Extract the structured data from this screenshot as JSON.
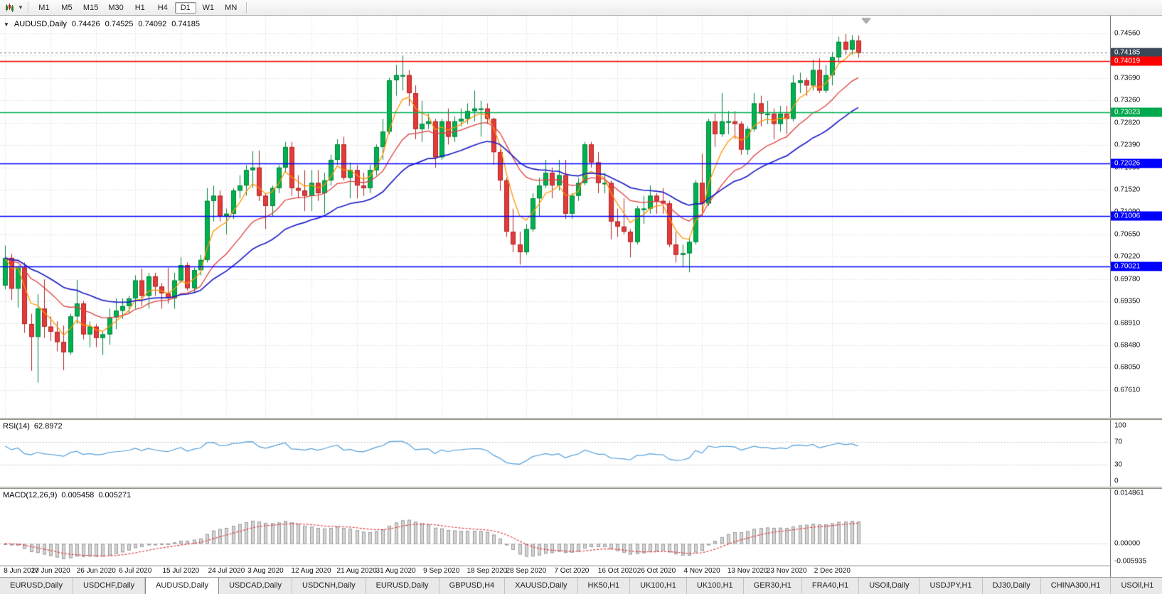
{
  "toolbar": {
    "timeframes": [
      "M1",
      "M5",
      "M15",
      "M30",
      "H1",
      "H4",
      "D1",
      "W1",
      "MN"
    ],
    "active_timeframe": "D1"
  },
  "symbol": {
    "name": "AUDUSD,Daily",
    "open": "0.74426",
    "high": "0.74525",
    "low": "0.74092",
    "close": "0.74185"
  },
  "rsi": {
    "label": "RSI(14)",
    "value": "62.8972",
    "axis_labels": [
      "100",
      "70",
      "30",
      "0"
    ],
    "axis_values": [
      100,
      70,
      30,
      0
    ],
    "level_lines": [
      70,
      30
    ]
  },
  "macd": {
    "label": "MACD(12,26,9)",
    "value_main": "0.005458",
    "value_signal": "0.005271",
    "axis_labels": [
      {
        "text": "0.014861",
        "value": 0.014861
      },
      {
        "text": "0.00000",
        "value": 0
      },
      {
        "text": "-0.005935",
        "value": -0.005935
      }
    ],
    "range": [
      -0.006,
      0.0149
    ]
  },
  "price_scale": {
    "grid_labels": [
      "0.74560",
      "0.74130",
      "0.73690",
      "0.73260",
      "0.72820",
      "0.72390",
      "0.71950",
      "0.71520",
      "0.71090",
      "0.70650",
      "0.70220",
      "0.69780",
      "0.69350",
      "0.68910",
      "0.68480",
      "0.68050",
      "0.67610"
    ],
    "badges": [
      {
        "label": "0.74185",
        "price": 0.74185,
        "color": "#3a4757",
        "name": "current-price-badge"
      },
      {
        "label": "0.74019",
        "price": 0.74019,
        "color": "#ff0000",
        "name": "price-level-badge-red"
      },
      {
        "label": "0.73023",
        "price": 0.73023,
        "color": "#00a84e",
        "name": "price-level-badge-green"
      },
      {
        "label": "0.72026",
        "price": 0.72026,
        "color": "#0000ff",
        "name": "price-level-badge-blue-1"
      },
      {
        "label": "0.71006",
        "price": 0.71006,
        "color": "#0000ff",
        "name": "price-level-badge-blue-2"
      },
      {
        "label": "0.70021",
        "price": 0.70021,
        "color": "#0000ff",
        "name": "price-level-badge-blue-3"
      }
    ]
  },
  "levels": [
    {
      "price": 0.74019,
      "color": "#ff0000"
    },
    {
      "price": 0.73023,
      "color": "#00b050"
    },
    {
      "price": 0.72026,
      "color": "#0000ff"
    },
    {
      "price": 0.71006,
      "color": "#0000ff"
    },
    {
      "price": 0.70021,
      "color": "#0000ff"
    }
  ],
  "current_price": {
    "price": 0.74185,
    "line_color": "#6b7684"
  },
  "colors": {
    "bull": "#00b14f",
    "bull_border": "#00843b",
    "bear": "#e23b3b",
    "bear_border": "#b02525",
    "ma_fast": "#ff9500",
    "ma_mid": "#e03e3e",
    "ma_slow": "#2020c8",
    "rsi_line": "#55a0dc",
    "macd_hist_fill": "#d6d6d6",
    "macd_hist_border": "#9a9a9a",
    "macd_signal": "#e03030",
    "grid": "#d8d8d8",
    "subgrid": "#c8c8c8"
  },
  "chart_data": {
    "type": "candlestick",
    "symbol": "AUDUSD",
    "timeframe": "Daily",
    "y_range_hint": [
      0.6761,
      0.7456
    ],
    "ma_periods": {
      "fast": 5,
      "mid": 15,
      "slow": 30
    },
    "x_ticks": [
      {
        "label": "8 Jun 2020",
        "index": 0
      },
      {
        "label": "17 Jun 2020",
        "index": 7
      },
      {
        "label": "26 Jun 2020",
        "index": 14
      },
      {
        "label": "6 Jul 2020",
        "index": 20
      },
      {
        "label": "15 Jul 2020",
        "index": 27
      },
      {
        "label": "24 Jul 2020",
        "index": 34
      },
      {
        "label": "3 Aug 2020",
        "index": 40
      },
      {
        "label": "12 Aug 2020",
        "index": 47
      },
      {
        "label": "21 Aug 2020",
        "index": 54
      },
      {
        "label": "31 Aug 2020",
        "index": 60
      },
      {
        "label": "9 Sep 2020",
        "index": 67
      },
      {
        "label": "18 Sep 2020",
        "index": 74
      },
      {
        "label": "28 Sep 2020",
        "index": 80
      },
      {
        "label": "7 Oct 2020",
        "index": 87
      },
      {
        "label": "16 Oct 2020",
        "index": 94
      },
      {
        "label": "26 Oct 2020",
        "index": 100
      },
      {
        "label": "4 Nov 2020",
        "index": 107
      },
      {
        "label": "13 Nov 2020",
        "index": 114
      },
      {
        "label": "23 Nov 2020",
        "index": 120
      },
      {
        "label": "2 Dec 2020",
        "index": 127
      }
    ],
    "candles": [
      [
        0.6965,
        0.7043,
        0.6958,
        0.7019
      ],
      [
        0.7019,
        0.7027,
        0.6937,
        0.6959
      ],
      [
        0.6959,
        0.7004,
        0.6922,
        0.7
      ],
      [
        0.7,
        0.701,
        0.6873,
        0.689
      ],
      [
        0.689,
        0.691,
        0.6799,
        0.6865
      ],
      [
        0.6865,
        0.6948,
        0.6776,
        0.692
      ],
      [
        0.692,
        0.6977,
        0.6863,
        0.6885
      ],
      [
        0.6885,
        0.6905,
        0.6857,
        0.6875
      ],
      [
        0.6875,
        0.6895,
        0.6837,
        0.6855
      ],
      [
        0.6855,
        0.6887,
        0.68,
        0.6835
      ],
      [
        0.6835,
        0.691,
        0.683,
        0.6905
      ],
      [
        0.6905,
        0.6976,
        0.689,
        0.693
      ],
      [
        0.693,
        0.6935,
        0.686,
        0.687
      ],
      [
        0.687,
        0.6895,
        0.6845,
        0.6885
      ],
      [
        0.6885,
        0.689,
        0.6845,
        0.6863
      ],
      [
        0.6863,
        0.6875,
        0.683,
        0.687
      ],
      [
        0.687,
        0.692,
        0.685,
        0.6903
      ],
      [
        0.6903,
        0.694,
        0.688,
        0.6916
      ],
      [
        0.6916,
        0.694,
        0.69,
        0.6925
      ],
      [
        0.6925,
        0.6945,
        0.691,
        0.694
      ],
      [
        0.694,
        0.6985,
        0.692,
        0.6975
      ],
      [
        0.6975,
        0.6998,
        0.6925,
        0.6945
      ],
      [
        0.6945,
        0.699,
        0.692,
        0.6983
      ],
      [
        0.6983,
        0.699,
        0.6945,
        0.6963
      ],
      [
        0.6963,
        0.697,
        0.692,
        0.695
      ],
      [
        0.695,
        0.7,
        0.693,
        0.694
      ],
      [
        0.694,
        0.699,
        0.692,
        0.6975
      ],
      [
        0.6975,
        0.702,
        0.697,
        0.7005
      ],
      [
        0.7005,
        0.701,
        0.6955,
        0.696
      ],
      [
        0.696,
        0.7,
        0.695,
        0.6995
      ],
      [
        0.6995,
        0.7025,
        0.6985,
        0.7015
      ],
      [
        0.7015,
        0.7155,
        0.701,
        0.713
      ],
      [
        0.713,
        0.716,
        0.709,
        0.714
      ],
      [
        0.714,
        0.715,
        0.709,
        0.71
      ],
      [
        0.71,
        0.7115,
        0.7065,
        0.7105
      ],
      [
        0.7105,
        0.7155,
        0.7095,
        0.715
      ],
      [
        0.715,
        0.718,
        0.7135,
        0.716
      ],
      [
        0.716,
        0.72,
        0.714,
        0.719
      ],
      [
        0.719,
        0.7227,
        0.7155,
        0.7195
      ],
      [
        0.7195,
        0.7228,
        0.713,
        0.714
      ],
      [
        0.714,
        0.7145,
        0.7075,
        0.712
      ],
      [
        0.712,
        0.716,
        0.71,
        0.7155
      ],
      [
        0.7155,
        0.72,
        0.7145,
        0.7195
      ],
      [
        0.7195,
        0.7245,
        0.7185,
        0.7235
      ],
      [
        0.7235,
        0.7245,
        0.714,
        0.7155
      ],
      [
        0.7155,
        0.718,
        0.7135,
        0.715
      ],
      [
        0.715,
        0.719,
        0.711,
        0.714
      ],
      [
        0.714,
        0.719,
        0.711,
        0.7165
      ],
      [
        0.7165,
        0.719,
        0.713,
        0.7145
      ],
      [
        0.7145,
        0.7185,
        0.7105,
        0.717
      ],
      [
        0.717,
        0.722,
        0.716,
        0.721
      ],
      [
        0.721,
        0.725,
        0.72,
        0.724
      ],
      [
        0.724,
        0.7255,
        0.717,
        0.7175
      ],
      [
        0.7175,
        0.7205,
        0.7135,
        0.719
      ],
      [
        0.719,
        0.72,
        0.7135,
        0.716
      ],
      [
        0.716,
        0.7185,
        0.714,
        0.7155
      ],
      [
        0.7155,
        0.72,
        0.7145,
        0.719
      ],
      [
        0.719,
        0.724,
        0.718,
        0.7235
      ],
      [
        0.7235,
        0.729,
        0.721,
        0.7265
      ],
      [
        0.7265,
        0.737,
        0.726,
        0.7365
      ],
      [
        0.7365,
        0.7395,
        0.7335,
        0.7375
      ],
      [
        0.7375,
        0.7413,
        0.7345,
        0.7375
      ],
      [
        0.7375,
        0.7385,
        0.7315,
        0.734
      ],
      [
        0.734,
        0.7355,
        0.725,
        0.727
      ],
      [
        0.727,
        0.7325,
        0.7245,
        0.728
      ],
      [
        0.728,
        0.73,
        0.727,
        0.7285
      ],
      [
        0.7285,
        0.729,
        0.7195,
        0.7215
      ],
      [
        0.7215,
        0.729,
        0.721,
        0.7285
      ],
      [
        0.7285,
        0.731,
        0.724,
        0.7255
      ],
      [
        0.7255,
        0.7295,
        0.7245,
        0.7285
      ],
      [
        0.7285,
        0.731,
        0.7275,
        0.729
      ],
      [
        0.729,
        0.732,
        0.728,
        0.7305
      ],
      [
        0.7305,
        0.7345,
        0.7285,
        0.731
      ],
      [
        0.731,
        0.7325,
        0.7255,
        0.731
      ],
      [
        0.731,
        0.732,
        0.728,
        0.729
      ],
      [
        0.729,
        0.7292,
        0.72,
        0.7225
      ],
      [
        0.7225,
        0.723,
        0.715,
        0.717
      ],
      [
        0.717,
        0.7175,
        0.706,
        0.707
      ],
      [
        0.707,
        0.7115,
        0.703,
        0.7045
      ],
      [
        0.7045,
        0.707,
        0.7006,
        0.703
      ],
      [
        0.703,
        0.7085,
        0.7025,
        0.7075
      ],
      [
        0.7075,
        0.7145,
        0.707,
        0.7135
      ],
      [
        0.7135,
        0.7175,
        0.71,
        0.716
      ],
      [
        0.716,
        0.721,
        0.7155,
        0.7185
      ],
      [
        0.7185,
        0.7195,
        0.7135,
        0.716
      ],
      [
        0.716,
        0.721,
        0.715,
        0.718
      ],
      [
        0.718,
        0.721,
        0.7095,
        0.7105
      ],
      [
        0.7105,
        0.7145,
        0.7095,
        0.714
      ],
      [
        0.714,
        0.7175,
        0.713,
        0.7165
      ],
      [
        0.7165,
        0.7245,
        0.716,
        0.724
      ],
      [
        0.724,
        0.7245,
        0.7195,
        0.7205
      ],
      [
        0.7205,
        0.7225,
        0.7145,
        0.7165
      ],
      [
        0.7165,
        0.7185,
        0.7145,
        0.7165
      ],
      [
        0.7165,
        0.717,
        0.7055,
        0.709
      ],
      [
        0.709,
        0.7115,
        0.706,
        0.708
      ],
      [
        0.708,
        0.7135,
        0.7065,
        0.707
      ],
      [
        0.707,
        0.7075,
        0.702,
        0.705
      ],
      [
        0.705,
        0.712,
        0.7045,
        0.7115
      ],
      [
        0.7115,
        0.714,
        0.7085,
        0.7115
      ],
      [
        0.7115,
        0.716,
        0.7105,
        0.714
      ],
      [
        0.714,
        0.7145,
        0.7105,
        0.713
      ],
      [
        0.713,
        0.7155,
        0.7105,
        0.7125
      ],
      [
        0.7125,
        0.713,
        0.704,
        0.7045
      ],
      [
        0.7045,
        0.707,
        0.701,
        0.7025
      ],
      [
        0.7025,
        0.7045,
        0.7001,
        0.7028
      ],
      [
        0.7028,
        0.706,
        0.6991,
        0.705
      ],
      [
        0.705,
        0.717,
        0.7045,
        0.7165
      ],
      [
        0.7165,
        0.7222,
        0.71,
        0.7125
      ],
      [
        0.7125,
        0.729,
        0.712,
        0.7285
      ],
      [
        0.7285,
        0.73,
        0.7235,
        0.726
      ],
      [
        0.726,
        0.734,
        0.7255,
        0.7285
      ],
      [
        0.7285,
        0.7305,
        0.726,
        0.7285
      ],
      [
        0.7285,
        0.7305,
        0.725,
        0.728
      ],
      [
        0.728,
        0.7285,
        0.722,
        0.723
      ],
      [
        0.723,
        0.7275,
        0.722,
        0.727
      ],
      [
        0.727,
        0.734,
        0.7265,
        0.732
      ],
      [
        0.732,
        0.7335,
        0.7275,
        0.73
      ],
      [
        0.73,
        0.7325,
        0.728,
        0.73
      ],
      [
        0.73,
        0.731,
        0.725,
        0.728
      ],
      [
        0.728,
        0.7315,
        0.7265,
        0.73
      ],
      [
        0.73,
        0.7315,
        0.726,
        0.729
      ],
      [
        0.729,
        0.7375,
        0.7285,
        0.736
      ],
      [
        0.736,
        0.738,
        0.734,
        0.7365
      ],
      [
        0.7365,
        0.737,
        0.7335,
        0.7355
      ],
      [
        0.7355,
        0.7405,
        0.7345,
        0.7385
      ],
      [
        0.7385,
        0.7408,
        0.734,
        0.7345
      ],
      [
        0.7345,
        0.7395,
        0.734,
        0.7375
      ],
      [
        0.7375,
        0.742,
        0.7355,
        0.741
      ],
      [
        0.741,
        0.745,
        0.74,
        0.744
      ],
      [
        0.744,
        0.7455,
        0.7415,
        0.7425
      ],
      [
        0.7425,
        0.7453,
        0.7415,
        0.7443
      ],
      [
        0.74426,
        0.74525,
        0.74092,
        0.74185
      ]
    ]
  },
  "tabs": {
    "active_index": 2,
    "items": [
      "EURUSD,Daily",
      "USDCHF,Daily",
      "AUDUSD,Daily",
      "USDCAD,Daily",
      "USDCNH,Daily",
      "EURUSD,Daily",
      "GBPUSD,H4",
      "XAUUSD,Daily",
      "HK50,H1",
      "UK100,H1",
      "UK100,H1",
      "GER30,H1",
      "FRA40,H1",
      "USOil,Daily",
      "USDJPY,H1",
      "DJ30,Daily",
      "CHINA300,H1",
      "USOil,H1"
    ]
  }
}
